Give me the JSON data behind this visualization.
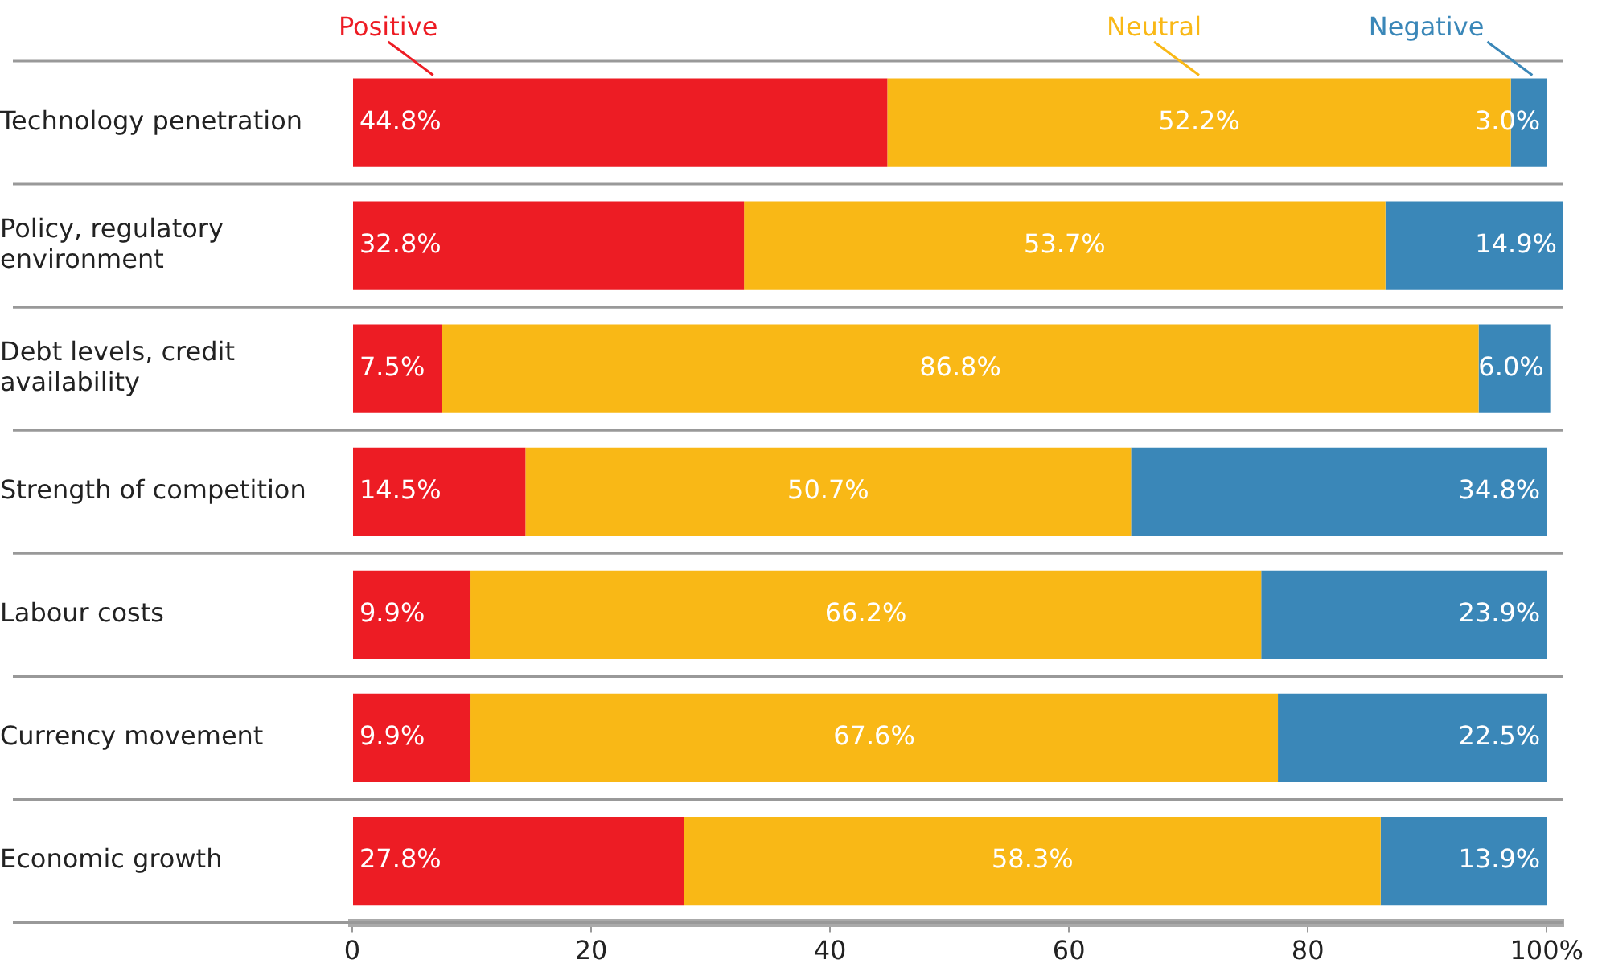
{
  "chart_data": {
    "type": "bar",
    "orientation": "horizontal",
    "stacked": true,
    "categories": [
      "Technology penetration",
      "Policy, regulatory environment",
      "Debt levels, credit availability",
      "Strength of competition",
      "Labour costs",
      "Currency movement",
      "Economic growth"
    ],
    "series": [
      {
        "name": "Positive",
        "color": "#ed1c24",
        "values": [
          44.8,
          32.8,
          7.5,
          14.5,
          9.9,
          9.9,
          27.8
        ],
        "value_labels": [
          "44.8%",
          "32.8%",
          "7.5%",
          "14.5%",
          "9.9%",
          "9.9%",
          "27.8%"
        ]
      },
      {
        "name": "Neutral",
        "color": "#f9b816",
        "values": [
          52.2,
          53.7,
          86.8,
          50.7,
          66.2,
          67.6,
          58.3
        ],
        "value_labels": [
          "52.2%",
          "53.7%",
          "86.8%",
          "50.7%",
          "66.2%",
          "67.6%",
          "58.3%"
        ]
      },
      {
        "name": "Negative",
        "color": "#3a87b8",
        "values": [
          3.0,
          14.9,
          6.0,
          34.8,
          23.9,
          22.5,
          13.9
        ],
        "value_labels": [
          "3.0%",
          "14.9%",
          "6.0%",
          "34.8%",
          "23.9%",
          "22.5%",
          "13.9%"
        ]
      }
    ],
    "xlim": [
      0,
      101.4
    ],
    "xticks": [
      0,
      20,
      40,
      60,
      80,
      {
        "value": 100,
        "label": "100%"
      }
    ],
    "grid": "y",
    "legend": false
  }
}
